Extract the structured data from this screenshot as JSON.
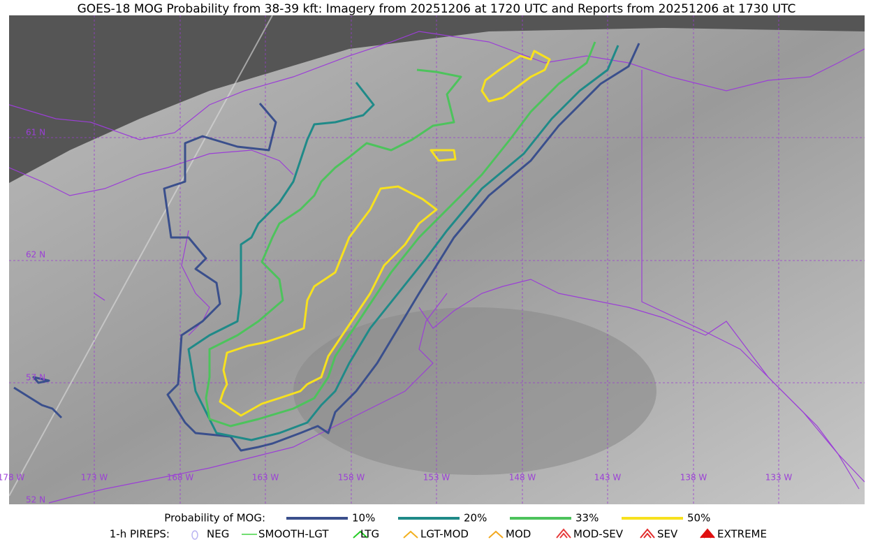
{
  "title": "GOES-18 MOG Probability from 38-39 kft: Imagery from 20251206 at 1720 UTC and Reports from 20251206 at 1730 UTC",
  "latitude_labels": [
    "61 N",
    "62 N",
    "57 N",
    "52 N"
  ],
  "longitude_labels": [
    "178 W",
    "173 W",
    "168 W",
    "163 W",
    "158 W",
    "153 W",
    "148 W",
    "143 W",
    "138 W",
    "133 W"
  ],
  "legend": {
    "probability": {
      "label": "Probability of MOG:",
      "items": [
        {
          "label": "10%",
          "color": "#3a4f8c"
        },
        {
          "label": "20%",
          "color": "#1f8a88"
        },
        {
          "label": "33%",
          "color": "#4dc35c"
        },
        {
          "label": "50%",
          "color": "#f7e11e"
        }
      ]
    },
    "pireps": {
      "label": "1-h PIREPS:",
      "items": [
        {
          "label": "NEG",
          "color": "#b9b4f2"
        },
        {
          "label": "SMOOTH-LGT",
          "color": "#44d444"
        },
        {
          "label": "LTG",
          "color": "#22cc22"
        },
        {
          "label": "LGT-MOD",
          "color": "#f2b01e"
        },
        {
          "label": "MOD",
          "color": "#f2a81e"
        },
        {
          "label": "MOD-SEV",
          "color": "#e63a3a"
        },
        {
          "label": "SEV",
          "color": "#e22b2b"
        },
        {
          "label": "EXTREME",
          "color": "#e01010"
        }
      ]
    }
  }
}
